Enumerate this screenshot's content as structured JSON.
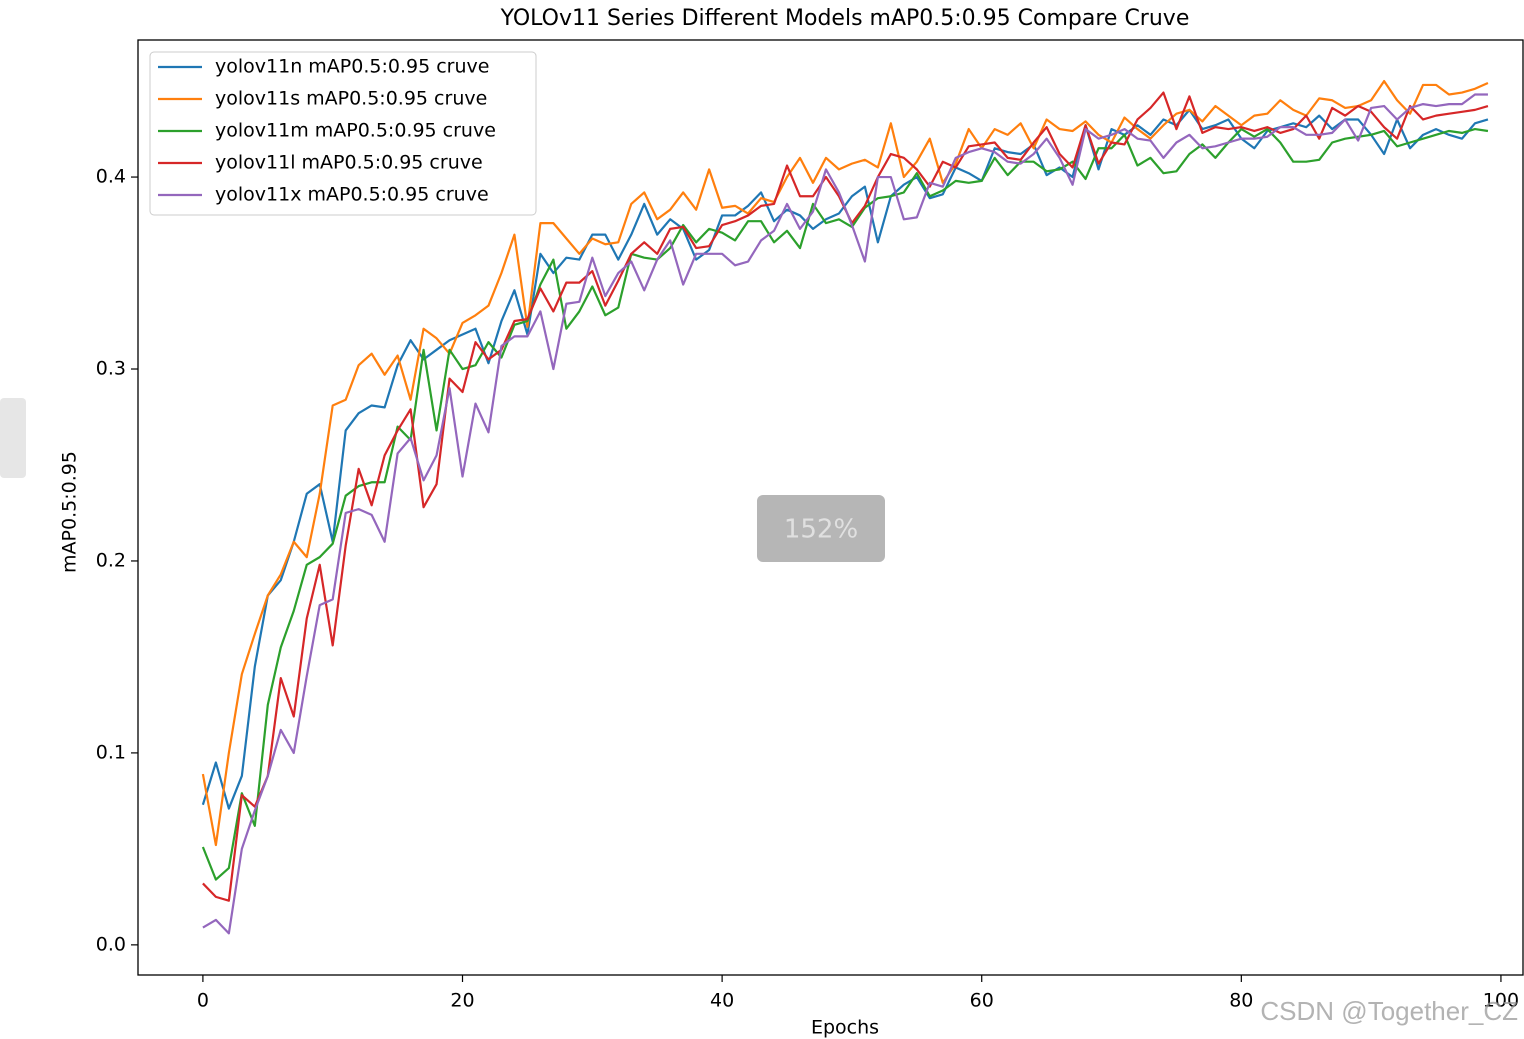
{
  "chart_data": {
    "type": "line",
    "title": "YOLOv11 Series Different Models mAP0.5:0.95 Compare Cruve",
    "xlabel": "Epochs",
    "ylabel": "mAP0.5:0.95",
    "x": [
      0,
      1,
      2,
      3,
      4,
      5,
      6,
      7,
      8,
      9,
      10,
      11,
      12,
      13,
      14,
      15,
      16,
      17,
      18,
      19,
      20,
      21,
      22,
      23,
      24,
      25,
      26,
      27,
      28,
      29,
      30,
      31,
      32,
      33,
      34,
      35,
      36,
      37,
      38,
      39,
      40,
      41,
      42,
      43,
      44,
      45,
      46,
      47,
      48,
      49,
      50,
      51,
      52,
      53,
      54,
      55,
      56,
      57,
      58,
      59,
      60,
      61,
      62,
      63,
      64,
      65,
      66,
      67,
      68,
      69,
      70,
      71,
      72,
      73,
      74,
      75,
      76,
      77,
      78,
      79,
      80,
      81,
      82,
      83,
      84,
      85,
      86,
      87,
      88,
      89,
      90,
      91,
      92,
      93,
      94,
      95,
      96,
      97,
      98,
      99
    ],
    "series": [
      {
        "name": "yolov11n mAP0.5:0.95 cruve",
        "color": "#1f77b4",
        "values": [
          0.073,
          0.095,
          0.071,
          0.088,
          0.145,
          0.182,
          0.19,
          0.21,
          0.235,
          0.24,
          0.21,
          0.268,
          0.277,
          0.281,
          0.28,
          0.302,
          0.315,
          0.305,
          0.31,
          0.315,
          0.318,
          0.321,
          0.303,
          0.325,
          0.341,
          0.318,
          0.36,
          0.35,
          0.358,
          0.357,
          0.37,
          0.37,
          0.357,
          0.37,
          0.386,
          0.37,
          0.378,
          0.373,
          0.357,
          0.362,
          0.38,
          0.38,
          0.385,
          0.392,
          0.377,
          0.383,
          0.38,
          0.373,
          0.378,
          0.381,
          0.39,
          0.395,
          0.366,
          0.39,
          0.396,
          0.4,
          0.389,
          0.391,
          0.405,
          0.402,
          0.398,
          0.415,
          0.413,
          0.412,
          0.417,
          0.401,
          0.405,
          0.4,
          0.427,
          0.404,
          0.425,
          0.422,
          0.427,
          0.422,
          0.43,
          0.427,
          0.435,
          0.425,
          0.427,
          0.43,
          0.42,
          0.415,
          0.424,
          0.426,
          0.428,
          0.426,
          0.432,
          0.425,
          0.43,
          0.43,
          0.422,
          0.412,
          0.43,
          0.415,
          0.422,
          0.425,
          0.422,
          0.42,
          0.428,
          0.43
        ]
      },
      {
        "name": "yolov11s mAP0.5:0.95 cruve",
        "color": "#ff7f0e",
        "values": [
          0.089,
          0.052,
          0.1,
          0.141,
          0.162,
          0.182,
          0.193,
          0.21,
          0.202,
          0.235,
          0.281,
          0.284,
          0.302,
          0.308,
          0.297,
          0.307,
          0.284,
          0.321,
          0.316,
          0.308,
          0.324,
          0.328,
          0.333,
          0.35,
          0.37,
          0.322,
          0.376,
          0.376,
          0.368,
          0.36,
          0.368,
          0.365,
          0.366,
          0.386,
          0.392,
          0.378,
          0.383,
          0.392,
          0.383,
          0.404,
          0.384,
          0.385,
          0.381,
          0.389,
          0.387,
          0.4,
          0.41,
          0.397,
          0.41,
          0.404,
          0.407,
          0.409,
          0.405,
          0.428,
          0.4,
          0.408,
          0.42,
          0.397,
          0.407,
          0.425,
          0.415,
          0.425,
          0.422,
          0.428,
          0.415,
          0.43,
          0.425,
          0.424,
          0.429,
          0.422,
          0.418,
          0.431,
          0.425,
          0.42,
          0.427,
          0.433,
          0.435,
          0.429,
          0.437,
          0.432,
          0.427,
          0.432,
          0.433,
          0.44,
          0.435,
          0.432,
          0.441,
          0.44,
          0.436,
          0.437,
          0.44,
          0.45,
          0.44,
          0.433,
          0.448,
          0.448,
          0.443,
          0.444,
          0.446,
          0.449
        ]
      },
      {
        "name": "yolov11m mAP0.5:0.95 cruve",
        "color": "#2ca02c",
        "values": [
          0.051,
          0.034,
          0.04,
          0.079,
          0.062,
          0.125,
          0.155,
          0.174,
          0.198,
          0.202,
          0.209,
          0.234,
          0.239,
          0.241,
          0.241,
          0.27,
          0.263,
          0.31,
          0.268,
          0.31,
          0.3,
          0.302,
          0.314,
          0.306,
          0.323,
          0.325,
          0.344,
          0.357,
          0.321,
          0.33,
          0.343,
          0.328,
          0.332,
          0.36,
          0.358,
          0.357,
          0.363,
          0.375,
          0.366,
          0.373,
          0.371,
          0.367,
          0.377,
          0.377,
          0.366,
          0.372,
          0.363,
          0.386,
          0.376,
          0.378,
          0.374,
          0.384,
          0.389,
          0.39,
          0.392,
          0.402,
          0.39,
          0.393,
          0.398,
          0.397,
          0.398,
          0.41,
          0.401,
          0.408,
          0.408,
          0.403,
          0.404,
          0.408,
          0.399,
          0.415,
          0.415,
          0.422,
          0.406,
          0.41,
          0.402,
          0.403,
          0.412,
          0.417,
          0.41,
          0.418,
          0.425,
          0.421,
          0.425,
          0.418,
          0.408,
          0.408,
          0.409,
          0.418,
          0.42,
          0.421,
          0.422,
          0.424,
          0.416,
          0.418,
          0.42,
          0.422,
          0.424,
          0.423,
          0.425,
          0.424
        ]
      },
      {
        "name": "yolov11l mAP0.5:0.95 cruve",
        "color": "#d62728",
        "values": [
          0.032,
          0.025,
          0.023,
          0.078,
          0.072,
          0.088,
          0.139,
          0.119,
          0.17,
          0.198,
          0.156,
          0.208,
          0.248,
          0.229,
          0.255,
          0.268,
          0.279,
          0.228,
          0.24,
          0.295,
          0.288,
          0.314,
          0.305,
          0.31,
          0.325,
          0.326,
          0.342,
          0.33,
          0.345,
          0.345,
          0.351,
          0.333,
          0.346,
          0.36,
          0.366,
          0.36,
          0.373,
          0.374,
          0.363,
          0.364,
          0.375,
          0.377,
          0.38,
          0.385,
          0.386,
          0.406,
          0.39,
          0.39,
          0.4,
          0.39,
          0.376,
          0.385,
          0.4,
          0.412,
          0.41,
          0.404,
          0.395,
          0.408,
          0.405,
          0.416,
          0.417,
          0.418,
          0.41,
          0.409,
          0.418,
          0.426,
          0.412,
          0.405,
          0.427,
          0.407,
          0.418,
          0.417,
          0.43,
          0.436,
          0.444,
          0.425,
          0.442,
          0.423,
          0.426,
          0.425,
          0.426,
          0.424,
          0.426,
          0.423,
          0.425,
          0.432,
          0.42,
          0.436,
          0.432,
          0.437,
          0.434,
          0.426,
          0.42,
          0.437,
          0.43,
          0.432,
          0.433,
          0.434,
          0.435,
          0.437
        ]
      },
      {
        "name": "yolov11x mAP0.5:0.95 cruve",
        "color": "#9467bd",
        "values": [
          0.009,
          0.013,
          0.006,
          0.05,
          0.07,
          0.088,
          0.112,
          0.1,
          0.14,
          0.177,
          0.18,
          0.225,
          0.227,
          0.224,
          0.21,
          0.256,
          0.264,
          0.242,
          0.255,
          0.29,
          0.244,
          0.282,
          0.267,
          0.312,
          0.317,
          0.317,
          0.33,
          0.3,
          0.334,
          0.335,
          0.358,
          0.338,
          0.35,
          0.356,
          0.341,
          0.357,
          0.367,
          0.344,
          0.36,
          0.36,
          0.36,
          0.354,
          0.356,
          0.367,
          0.372,
          0.386,
          0.373,
          0.382,
          0.404,
          0.392,
          0.375,
          0.356,
          0.4,
          0.4,
          0.378,
          0.379,
          0.397,
          0.395,
          0.41,
          0.413,
          0.415,
          0.413,
          0.408,
          0.407,
          0.412,
          0.42,
          0.41,
          0.396,
          0.425,
          0.42,
          0.422,
          0.425,
          0.42,
          0.419,
          0.41,
          0.418,
          0.422,
          0.415,
          0.416,
          0.418,
          0.42,
          0.42,
          0.421,
          0.426,
          0.426,
          0.422,
          0.422,
          0.423,
          0.43,
          0.419,
          0.436,
          0.437,
          0.43,
          0.436,
          0.438,
          0.437,
          0.438,
          0.438,
          0.443,
          0.443
        ]
      }
    ],
    "xlim": [
      -5,
      101.7
    ],
    "ylim": [
      -0.0157,
      0.4714
    ],
    "xticks": [
      0,
      20,
      40,
      60,
      80,
      100
    ],
    "yticks": [
      {
        "value": 0,
        "label": "0.0"
      },
      0.1,
      0.2,
      0.3,
      0.4
    ],
    "legend": "upper left"
  },
  "overlay": {
    "zoom": "152%",
    "watermark": "CSDN @Together_CZ"
  }
}
